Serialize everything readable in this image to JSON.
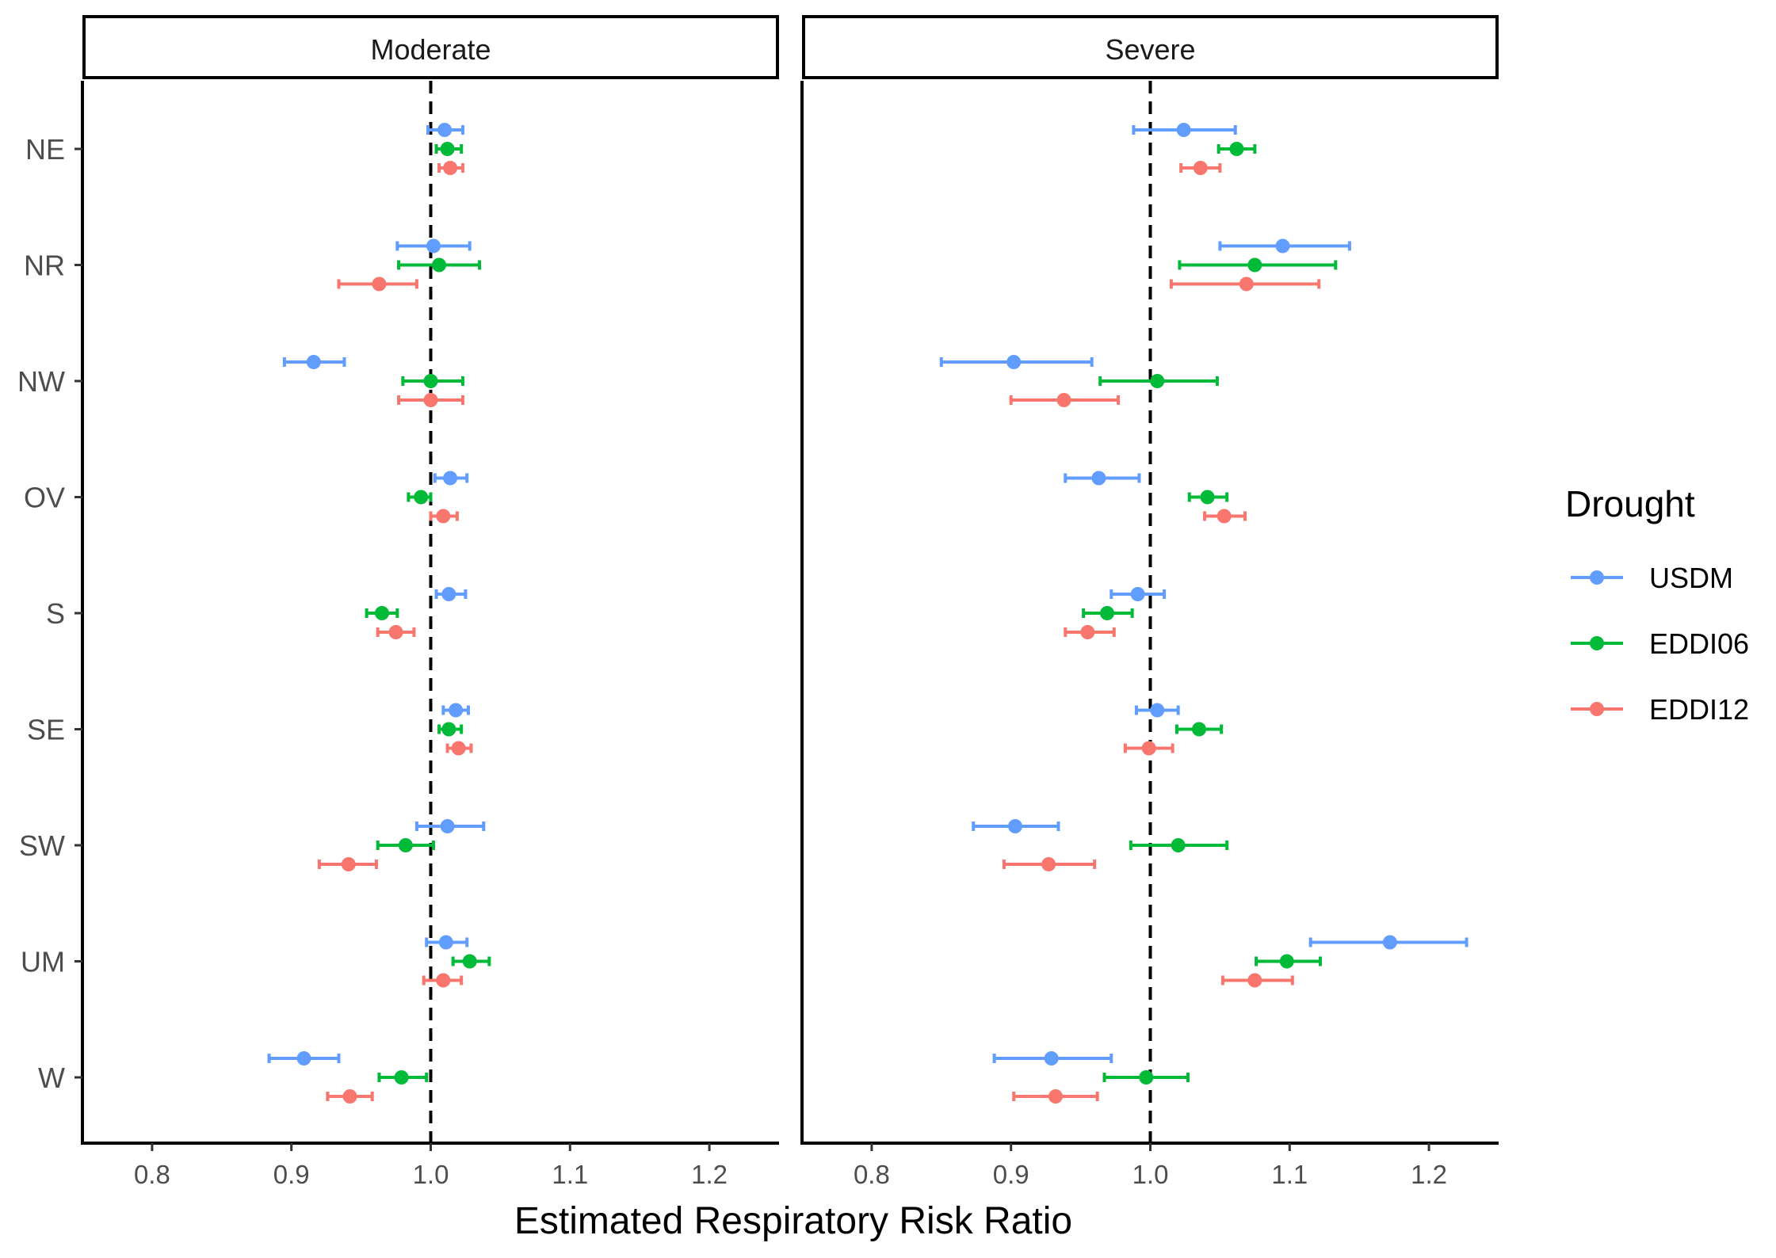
{
  "chart_data": {
    "type": "scatter",
    "subtype": "dot-and-whisker (point estimate with confidence interval)",
    "xlabel": "Estimated Respiratory Risk Ratio",
    "ylabel": "",
    "xlim": [
      0.75,
      1.25
    ],
    "xticks": [
      "0.8",
      "0.9",
      "1.0",
      "1.1",
      "1.2"
    ],
    "xtick_values": [
      0.8,
      0.9,
      1.0,
      1.1,
      1.2
    ],
    "reference_line": 1.0,
    "regions": [
      "NE",
      "NR",
      "NW",
      "OV",
      "S",
      "SE",
      "SW",
      "UM",
      "W"
    ],
    "panels": [
      {
        "label": "Moderate"
      },
      {
        "label": "Severe"
      }
    ],
    "legend": {
      "title": "Drought",
      "position": "right",
      "items": [
        {
          "name": "USDM",
          "color": "#619CFF"
        },
        {
          "name": "EDDI06",
          "color": "#00BA38"
        },
        {
          "name": "EDDI12",
          "color": "#F8766D"
        }
      ]
    },
    "series": [
      {
        "panel": "Moderate",
        "name": "USDM",
        "points": [
          {
            "region": "NE",
            "est": 1.01,
            "lo": 0.998,
            "hi": 1.023
          },
          {
            "region": "NR",
            "est": 1.002,
            "lo": 0.976,
            "hi": 1.028
          },
          {
            "region": "NW",
            "est": 0.916,
            "lo": 0.895,
            "hi": 0.938
          },
          {
            "region": "OV",
            "est": 1.014,
            "lo": 1.003,
            "hi": 1.026
          },
          {
            "region": "S",
            "est": 1.013,
            "lo": 1.004,
            "hi": 1.025
          },
          {
            "region": "SE",
            "est": 1.018,
            "lo": 1.009,
            "hi": 1.027
          },
          {
            "region": "SW",
            "est": 1.012,
            "lo": 0.99,
            "hi": 1.038
          },
          {
            "region": "UM",
            "est": 1.011,
            "lo": 0.997,
            "hi": 1.026
          },
          {
            "region": "W",
            "est": 0.909,
            "lo": 0.884,
            "hi": 0.934
          }
        ]
      },
      {
        "panel": "Moderate",
        "name": "EDDI06",
        "points": [
          {
            "region": "NE",
            "est": 1.012,
            "lo": 1.004,
            "hi": 1.022
          },
          {
            "region": "NR",
            "est": 1.006,
            "lo": 0.977,
            "hi": 1.035
          },
          {
            "region": "NW",
            "est": 1.0,
            "lo": 0.98,
            "hi": 1.023
          },
          {
            "region": "OV",
            "est": 0.993,
            "lo": 0.984,
            "hi": 1.0
          },
          {
            "region": "S",
            "est": 0.965,
            "lo": 0.954,
            "hi": 0.976
          },
          {
            "region": "SE",
            "est": 1.013,
            "lo": 1.006,
            "hi": 1.022
          },
          {
            "region": "SW",
            "est": 0.982,
            "lo": 0.962,
            "hi": 1.002
          },
          {
            "region": "UM",
            "est": 1.028,
            "lo": 1.016,
            "hi": 1.042
          },
          {
            "region": "W",
            "est": 0.979,
            "lo": 0.963,
            "hi": 0.997
          }
        ]
      },
      {
        "panel": "Moderate",
        "name": "EDDI12",
        "points": [
          {
            "region": "NE",
            "est": 1.014,
            "lo": 1.006,
            "hi": 1.023
          },
          {
            "region": "NR",
            "est": 0.963,
            "lo": 0.934,
            "hi": 0.99
          },
          {
            "region": "NW",
            "est": 1.0,
            "lo": 0.977,
            "hi": 1.023
          },
          {
            "region": "OV",
            "est": 1.009,
            "lo": 1.0,
            "hi": 1.019
          },
          {
            "region": "S",
            "est": 0.975,
            "lo": 0.962,
            "hi": 0.988
          },
          {
            "region": "SE",
            "est": 1.02,
            "lo": 1.012,
            "hi": 1.029
          },
          {
            "region": "SW",
            "est": 0.941,
            "lo": 0.92,
            "hi": 0.961
          },
          {
            "region": "UM",
            "est": 1.009,
            "lo": 0.995,
            "hi": 1.022
          },
          {
            "region": "W",
            "est": 0.942,
            "lo": 0.926,
            "hi": 0.958
          }
        ]
      },
      {
        "panel": "Severe",
        "name": "USDM",
        "points": [
          {
            "region": "NE",
            "est": 1.024,
            "lo": 0.988,
            "hi": 1.061
          },
          {
            "region": "NR",
            "est": 1.095,
            "lo": 1.05,
            "hi": 1.143
          },
          {
            "region": "NW",
            "est": 0.902,
            "lo": 0.85,
            "hi": 0.958
          },
          {
            "region": "OV",
            "est": 0.963,
            "lo": 0.939,
            "hi": 0.992
          },
          {
            "region": "S",
            "est": 0.991,
            "lo": 0.972,
            "hi": 1.01
          },
          {
            "region": "SE",
            "est": 1.005,
            "lo": 0.99,
            "hi": 1.02
          },
          {
            "region": "SW",
            "est": 0.903,
            "lo": 0.873,
            "hi": 0.934
          },
          {
            "region": "UM",
            "est": 1.172,
            "lo": 1.115,
            "hi": 1.227
          },
          {
            "region": "W",
            "est": 0.929,
            "lo": 0.888,
            "hi": 0.972
          }
        ]
      },
      {
        "panel": "Severe",
        "name": "EDDI06",
        "points": [
          {
            "region": "NE",
            "est": 1.062,
            "lo": 1.049,
            "hi": 1.075
          },
          {
            "region": "NR",
            "est": 1.075,
            "lo": 1.021,
            "hi": 1.133
          },
          {
            "region": "NW",
            "est": 1.005,
            "lo": 0.964,
            "hi": 1.048
          },
          {
            "region": "OV",
            "est": 1.041,
            "lo": 1.028,
            "hi": 1.055
          },
          {
            "region": "S",
            "est": 0.969,
            "lo": 0.952,
            "hi": 0.987
          },
          {
            "region": "SE",
            "est": 1.035,
            "lo": 1.019,
            "hi": 1.051
          },
          {
            "region": "SW",
            "est": 1.02,
            "lo": 0.986,
            "hi": 1.055
          },
          {
            "region": "UM",
            "est": 1.098,
            "lo": 1.076,
            "hi": 1.122
          },
          {
            "region": "W",
            "est": 0.997,
            "lo": 0.967,
            "hi": 1.027
          }
        ]
      },
      {
        "panel": "Severe",
        "name": "EDDI12",
        "points": [
          {
            "region": "NE",
            "est": 1.036,
            "lo": 1.022,
            "hi": 1.05
          },
          {
            "region": "NR",
            "est": 1.069,
            "lo": 1.015,
            "hi": 1.121
          },
          {
            "region": "NW",
            "est": 0.938,
            "lo": 0.9,
            "hi": 0.977
          },
          {
            "region": "OV",
            "est": 1.053,
            "lo": 1.039,
            "hi": 1.068
          },
          {
            "region": "S",
            "est": 0.955,
            "lo": 0.939,
            "hi": 0.974
          },
          {
            "region": "SE",
            "est": 0.999,
            "lo": 0.982,
            "hi": 1.016
          },
          {
            "region": "SW",
            "est": 0.927,
            "lo": 0.895,
            "hi": 0.96
          },
          {
            "region": "UM",
            "est": 1.075,
            "lo": 1.052,
            "hi": 1.102
          },
          {
            "region": "W",
            "est": 0.932,
            "lo": 0.902,
            "hi": 0.962
          }
        ]
      }
    ]
  }
}
